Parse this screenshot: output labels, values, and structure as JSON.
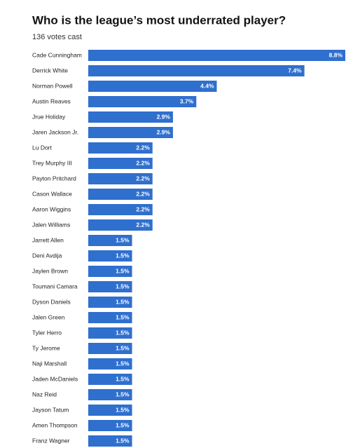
{
  "chart_data": {
    "type": "bar",
    "orientation": "horizontal",
    "title": "Who is the league’s most underrated player?",
    "subtitle": "136 votes cast",
    "color": "#2f6fce",
    "categories": [
      "Cade Cunningham",
      "Derrick White",
      "Norman Powell",
      "Austin Reaves",
      "Jrue Holiday",
      "Jaren Jackson Jr.",
      "Lu Dort",
      "Trey Murphy III",
      "Payton Pritchard",
      "Cason Wallace",
      "Aaron Wiggins",
      "Jalen Williams",
      "Jarrett Allen",
      "Deni Avdija",
      "Jaylen Brown",
      "Toumani Camara",
      "Dyson Daniels",
      "Jalen Green",
      "Tyler Herro",
      "Ty Jerome",
      "Naji Marshall",
      "Jaden McDaniels",
      "Naz Reid",
      "Jayson Tatum",
      "Amen Thompson",
      "Franz Wagner"
    ],
    "values": [
      8.8,
      7.4,
      4.4,
      3.7,
      2.9,
      2.9,
      2.2,
      2.2,
      2.2,
      2.2,
      2.2,
      2.2,
      1.5,
      1.5,
      1.5,
      1.5,
      1.5,
      1.5,
      1.5,
      1.5,
      1.5,
      1.5,
      1.5,
      1.5,
      1.5,
      1.5
    ],
    "value_labels": [
      "8.8%",
      "7.4%",
      "4.4%",
      "3.7%",
      "2.9%",
      "2.9%",
      "2.2%",
      "2.2%",
      "2.2%",
      "2.2%",
      "2.2%",
      "2.2%",
      "1.5%",
      "1.5%",
      "1.5%",
      "1.5%",
      "1.5%",
      "1.5%",
      "1.5%",
      "1.5%",
      "1.5%",
      "1.5%",
      "1.5%",
      "1.5%",
      "1.5%",
      "1.5%"
    ]
  }
}
